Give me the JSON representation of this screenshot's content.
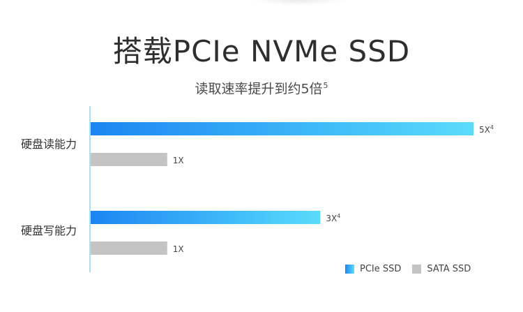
{
  "title": "搭载PCIe NVMe SSD",
  "subtitle": {
    "text": "读取速率提升到约5倍",
    "superscript": "5"
  },
  "chart_data": {
    "type": "bar",
    "orientation": "horizontal",
    "categories": [
      "硬盘读能力",
      "硬盘写能力"
    ],
    "series": [
      {
        "name": "PCIe SSD",
        "values": [
          5,
          3
        ],
        "labels": [
          "5X",
          "3X"
        ],
        "label_superscripts": [
          "4",
          "4"
        ]
      },
      {
        "name": "SATA SSD",
        "values": [
          1,
          1
        ],
        "labels": [
          "1X",
          "1X"
        ],
        "label_superscripts": [
          "",
          ""
        ]
      }
    ],
    "xlim": [
      0,
      5
    ],
    "grid": false,
    "legend_position": "bottom-right",
    "colors": {
      "pcie_start": "#1a86f2",
      "pcie_end": "#59dcfb",
      "sata": "#c4c4c4",
      "axis": "#4fc3e8"
    }
  },
  "legend": {
    "items": [
      {
        "label": "PCIe SSD"
      },
      {
        "label": "SATA SSD"
      }
    ]
  }
}
